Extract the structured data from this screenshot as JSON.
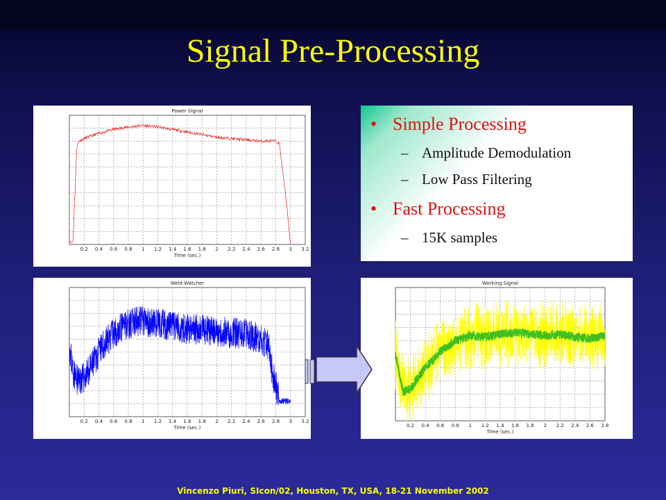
{
  "slide": {
    "title": "Signal Pre-Processing",
    "footer": "Vincenzo Piuri, SIcon/02, Houston, TX, USA, 18-21 November 2002"
  },
  "bullets": [
    {
      "label": "Simple Processing",
      "subitems": [
        "Amplitude Demodulation",
        "Low Pass Filtering"
      ]
    },
    {
      "label": "Fast Processing",
      "subitems": [
        "15K samples"
      ]
    }
  ],
  "colors": {
    "title": "#ffff00",
    "bullet": "#e01010",
    "power_signal": "#e82020",
    "weld_watcher": "#0000ff",
    "working_signal_raw": "#ffff00",
    "working_signal_filtered": "#40c020"
  },
  "chart_data": [
    {
      "type": "line",
      "title": "Power Signal",
      "xlabel": "Time (sec.)",
      "xlim": [
        0,
        3.2
      ],
      "xticks": [
        "0.2",
        "0.4",
        "0.6",
        "0.8",
        "1",
        "1.2",
        "1.4",
        "1.6",
        "1.8",
        "2",
        "2.2",
        "2.4",
        "2.6",
        "2.8",
        "3",
        "3.2"
      ],
      "grid": true,
      "series": [
        {
          "color": "#e82020",
          "x": [
            0,
            0.05,
            0.1,
            0.13,
            0.2,
            0.4,
            0.6,
            0.8,
            1.0,
            1.2,
            1.4,
            1.6,
            1.8,
            2.0,
            2.2,
            2.4,
            2.6,
            2.8,
            2.85,
            2.95,
            3.0
          ],
          "y": [
            0.02,
            0.02,
            0.75,
            0.8,
            0.82,
            0.86,
            0.89,
            0.91,
            0.92,
            0.91,
            0.89,
            0.87,
            0.85,
            0.83,
            0.82,
            0.81,
            0.8,
            0.8,
            0.78,
            0.3,
            0.0
          ]
        }
      ]
    },
    {
      "type": "line",
      "title": "Weld Watcher",
      "xlabel": "Time (sec.)",
      "xlim": [
        0,
        3.2
      ],
      "xticks": [
        "0.2",
        "0.4",
        "0.6",
        "0.8",
        "1",
        "1.2",
        "1.4",
        "1.6",
        "1.8",
        "2",
        "2.2",
        "2.4",
        "2.6",
        "2.8",
        "3",
        "3.2"
      ],
      "grid": true,
      "series": [
        {
          "color": "#0000ff",
          "x": [
            0,
            0.05,
            0.1,
            0.2,
            0.3,
            0.4,
            0.5,
            0.6,
            0.8,
            1.0,
            1.2,
            1.4,
            1.6,
            1.8,
            2.0,
            2.2,
            2.4,
            2.6,
            2.7,
            2.75,
            2.85,
            3.0
          ],
          "y": [
            0.55,
            0.35,
            0.28,
            0.3,
            0.38,
            0.5,
            0.58,
            0.65,
            0.72,
            0.74,
            0.72,
            0.7,
            0.68,
            0.67,
            0.66,
            0.65,
            0.64,
            0.6,
            0.55,
            0.35,
            0.12,
            0.12
          ]
        }
      ]
    },
    {
      "type": "line",
      "title": "Working Signal",
      "xlabel": "Time (sec.)",
      "xlim": [
        0,
        2.8
      ],
      "xticks": [
        "0.2",
        "0.4",
        "0.6",
        "0.8",
        "1",
        "1.2",
        "1.4",
        "1.6",
        "1.8",
        "2",
        "2.2",
        "2.4",
        "2.6",
        "2.8"
      ],
      "grid": true,
      "series": [
        {
          "color": "#ffff00",
          "x": [
            0,
            0.1,
            0.2,
            0.3,
            0.4,
            0.5,
            0.6,
            0.8,
            1.0,
            1.2,
            1.4,
            1.6,
            1.8,
            2.0,
            2.2,
            2.4,
            2.6,
            2.8
          ],
          "y": [
            0.5,
            0.22,
            0.24,
            0.32,
            0.4,
            0.46,
            0.52,
            0.6,
            0.64,
            0.63,
            0.65,
            0.66,
            0.65,
            0.64,
            0.65,
            0.63,
            0.62,
            0.64
          ]
        },
        {
          "color": "#40c020",
          "x": [
            0,
            0.1,
            0.2,
            0.3,
            0.4,
            0.5,
            0.6,
            0.8,
            1.0,
            1.2,
            1.4,
            1.6,
            1.8,
            2.0,
            2.2,
            2.4,
            2.6,
            2.8
          ],
          "y": [
            0.5,
            0.22,
            0.24,
            0.32,
            0.4,
            0.46,
            0.52,
            0.6,
            0.64,
            0.63,
            0.65,
            0.66,
            0.65,
            0.64,
            0.65,
            0.63,
            0.62,
            0.64
          ]
        }
      ]
    }
  ]
}
